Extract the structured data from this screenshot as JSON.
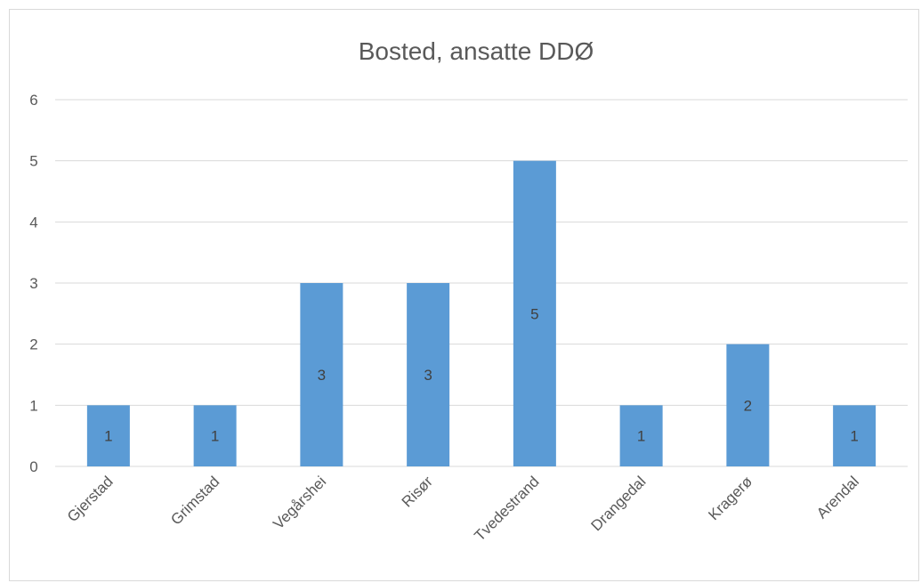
{
  "chart_data": {
    "type": "bar",
    "title": "Bosted, ansatte DDØ",
    "categories": [
      "Gjerstad",
      "Grimstad",
      "Vegårshei",
      "Risør",
      "Tvedestrand",
      "Drangedal",
      "Kragerø",
      "Arendal"
    ],
    "values": [
      1,
      1,
      3,
      3,
      5,
      1,
      2,
      1
    ],
    "data_labels": [
      "1",
      "1",
      "3",
      "3",
      "5",
      "1",
      "2",
      "1"
    ],
    "y_ticks": [
      "0",
      "1",
      "2",
      "3",
      "4",
      "5",
      "6"
    ],
    "ylim": [
      0,
      6
    ],
    "xlabel": "",
    "ylabel": "",
    "grid": true,
    "legend": "none",
    "bar_color": "#5b9bd5",
    "grid_color": "#d9d9d9",
    "text_color": "#595959"
  }
}
